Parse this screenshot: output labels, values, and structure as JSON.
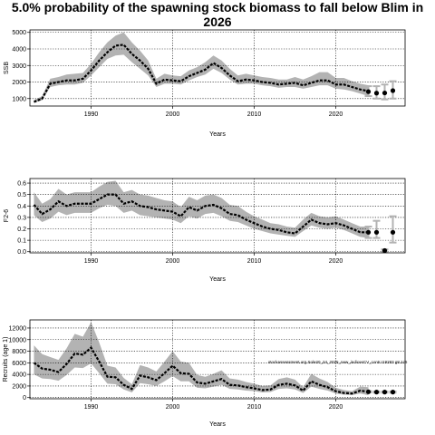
{
  "page": {
    "title": "5.0% probability of the spawning stock biomass to fall below Blim in 2026",
    "note": "stockassessment.org Sole20_24_2025_new_indicesCV_contr.r19283 g8.1c6"
  },
  "colors": {
    "band": "#b3b3b3",
    "line": "#000000",
    "grid": "#000000",
    "errorbar": "#b3b3b3"
  },
  "chart_data": [
    {
      "type": "line",
      "name": "ssb",
      "title": "",
      "xlabel": "Years",
      "ylabel": "SSB",
      "xlim": [
        1982.5,
        2028.5
      ],
      "ylim": [
        550,
        5150
      ],
      "xticks": [
        1990,
        2000,
        2010,
        2020
      ],
      "yticks": [
        1000,
        2000,
        3000,
        4000,
        5000
      ],
      "grid": true,
      "x": [
        1983,
        1984,
        1985,
        1986,
        1987,
        1988,
        1989,
        1990,
        1991,
        1992,
        1993,
        1994,
        1995,
        1996,
        1997,
        1998,
        1999,
        2000,
        2001,
        2002,
        2003,
        2004,
        2005,
        2006,
        2007,
        2008,
        2009,
        2010,
        2011,
        2012,
        2013,
        2014,
        2015,
        2016,
        2017,
        2018,
        2019,
        2020,
        2021,
        2022,
        2023,
        2024
      ],
      "values": [
        800,
        1000,
        1900,
        2000,
        2100,
        2100,
        2200,
        2700,
        3300,
        3800,
        4200,
        4250,
        3700,
        3300,
        2800,
        1900,
        2150,
        2100,
        2050,
        2350,
        2550,
        2750,
        3150,
        2850,
        2400,
        2050,
        2150,
        2100,
        2000,
        1950,
        1850,
        1900,
        1950,
        1800,
        1950,
        2100,
        2100,
        1850,
        1850,
        1700,
        1550,
        1450
      ],
      "lower": [
        750,
        900,
        1700,
        1800,
        1850,
        1850,
        1950,
        2400,
        2900,
        3400,
        3600,
        3650,
        3200,
        2800,
        2400,
        1700,
        1900,
        1900,
        1850,
        2100,
        2300,
        2450,
        2800,
        2550,
        2150,
        1850,
        1900,
        1900,
        1800,
        1750,
        1650,
        1700,
        1700,
        1600,
        1700,
        1800,
        1800,
        1600,
        1550,
        1450,
        1300,
        1150
      ],
      "upper": [
        900,
        1150,
        2200,
        2300,
        2450,
        2500,
        2550,
        3100,
        3800,
        4400,
        4800,
        5000,
        4400,
        3900,
        3300,
        2200,
        2500,
        2400,
        2350,
        2700,
        2900,
        3200,
        3600,
        3300,
        2800,
        2400,
        2500,
        2400,
        2300,
        2250,
        2150,
        2150,
        2300,
        2150,
        2350,
        2600,
        2600,
        2250,
        2250,
        2050,
        1900,
        1800
      ],
      "forecast_x": [
        2024,
        2025,
        2026,
        2027
      ],
      "forecast_values": [
        1420,
        1330,
        1340,
        1480
      ],
      "forecast_lower": [
        1150,
        1000,
        950,
        1000
      ],
      "forecast_upper": [
        1750,
        1750,
        1850,
        2050
      ]
    },
    {
      "type": "line",
      "name": "fbar",
      "title": "",
      "xlabel": "Years",
      "ylabel": "F2-6",
      "xlim": [
        1982.5,
        2028.5
      ],
      "ylim": [
        -0.01,
        0.64
      ],
      "xticks": [
        1990,
        2000,
        2010,
        2020
      ],
      "yticks": [
        0.0,
        0.1,
        0.2,
        0.3,
        0.4,
        0.5,
        0.6
      ],
      "ytick_labels": [
        "0.0",
        "0.1",
        "0.2",
        "0.3",
        "0.4",
        "0.5",
        "0.6"
      ],
      "grid": true,
      "x": [
        1983,
        1984,
        1985,
        1986,
        1987,
        1988,
        1989,
        1990,
        1991,
        1992,
        1993,
        1994,
        1995,
        1996,
        1997,
        1998,
        1999,
        2000,
        2001,
        2002,
        2003,
        2004,
        2005,
        2006,
        2007,
        2008,
        2009,
        2010,
        2011,
        2012,
        2013,
        2014,
        2015,
        2016,
        2017,
        2018,
        2019,
        2020,
        2021,
        2022,
        2023,
        2024
      ],
      "values": [
        0.41,
        0.33,
        0.37,
        0.44,
        0.4,
        0.42,
        0.42,
        0.42,
        0.46,
        0.5,
        0.5,
        0.42,
        0.44,
        0.4,
        0.39,
        0.37,
        0.36,
        0.35,
        0.31,
        0.39,
        0.36,
        0.4,
        0.41,
        0.38,
        0.33,
        0.32,
        0.28,
        0.25,
        0.22,
        0.2,
        0.19,
        0.17,
        0.16,
        0.22,
        0.28,
        0.25,
        0.24,
        0.25,
        0.23,
        0.2,
        0.17,
        0.17
      ],
      "lower": [
        0.32,
        0.26,
        0.29,
        0.35,
        0.32,
        0.34,
        0.34,
        0.34,
        0.38,
        0.41,
        0.4,
        0.34,
        0.36,
        0.32,
        0.31,
        0.3,
        0.29,
        0.28,
        0.25,
        0.31,
        0.29,
        0.33,
        0.34,
        0.31,
        0.27,
        0.26,
        0.23,
        0.2,
        0.18,
        0.16,
        0.15,
        0.14,
        0.13,
        0.18,
        0.23,
        0.21,
        0.2,
        0.21,
        0.19,
        0.16,
        0.13,
        0.12
      ],
      "upper": [
        0.52,
        0.42,
        0.46,
        0.55,
        0.5,
        0.52,
        0.52,
        0.52,
        0.57,
        0.61,
        0.62,
        0.52,
        0.54,
        0.5,
        0.49,
        0.47,
        0.45,
        0.44,
        0.39,
        0.48,
        0.45,
        0.49,
        0.5,
        0.47,
        0.41,
        0.4,
        0.35,
        0.31,
        0.28,
        0.25,
        0.24,
        0.22,
        0.21,
        0.28,
        0.34,
        0.31,
        0.3,
        0.31,
        0.28,
        0.25,
        0.22,
        0.22
      ],
      "forecast_x": [
        2024,
        2025,
        2026,
        2027
      ],
      "forecast_values": [
        0.17,
        0.17,
        0.01,
        0.17
      ],
      "forecast_lower": [
        0.12,
        0.12,
        0.0,
        0.08
      ],
      "forecast_upper": [
        0.22,
        0.27,
        0.02,
        0.31
      ]
    },
    {
      "type": "line",
      "name": "recruits",
      "title": "",
      "xlabel": "Years",
      "ylabel": "Recruits (age 1)",
      "xlim": [
        1982.5,
        2028.5
      ],
      "ylim": [
        -200,
        13400
      ],
      "xticks": [
        1990,
        2000,
        2010,
        2020
      ],
      "yticks": [
        0,
        2000,
        4000,
        6000,
        8000,
        10000,
        12000
      ],
      "grid": true,
      "x": [
        1983,
        1984,
        1985,
        1986,
        1987,
        1988,
        1989,
        1990,
        1991,
        1992,
        1993,
        1994,
        1995,
        1996,
        1997,
        1998,
        1999,
        2000,
        2001,
        2002,
        2003,
        2004,
        2005,
        2006,
        2007,
        2008,
        2009,
        2010,
        2011,
        2012,
        2013,
        2014,
        2015,
        2016,
        2017,
        2018,
        2019,
        2020,
        2021,
        2022,
        2023,
        2024
      ],
      "values": [
        6000,
        5000,
        4800,
        4400,
        5800,
        7600,
        7400,
        8600,
        6200,
        3600,
        3500,
        2200,
        1500,
        3800,
        3500,
        3000,
        4200,
        5500,
        4200,
        4100,
        2600,
        2400,
        2800,
        3200,
        2200,
        2100,
        1800,
        1600,
        1300,
        1400,
        2200,
        2400,
        2100,
        1200,
        2800,
        2200,
        1800,
        1100,
        800,
        700,
        1200,
        1000
      ],
      "lower": [
        4000,
        3300,
        3200,
        2900,
        3900,
        5200,
        5100,
        5900,
        4200,
        2400,
        2300,
        1400,
        900,
        2500,
        2300,
        2000,
        2800,
        3700,
        2800,
        2800,
        1700,
        1600,
        1900,
        2200,
        1500,
        1400,
        1200,
        1100,
        900,
        950,
        1500,
        1600,
        1400,
        800,
        1900,
        1500,
        1200,
        700,
        500,
        450,
        700,
        400
      ],
      "upper": [
        9000,
        7500,
        7000,
        6500,
        8500,
        11000,
        10500,
        13000,
        9500,
        5500,
        5200,
        3400,
        2300,
        5600,
        5200,
        4500,
        6200,
        8000,
        6200,
        6000,
        3900,
        3600,
        4100,
        4700,
        3300,
        3100,
        2700,
        2400,
        2000,
        2100,
        3200,
        3500,
        3100,
        1800,
        4100,
        3300,
        2700,
        1700,
        1300,
        1100,
        1900,
        1800
      ],
      "forecast_x": [
        2024,
        2025,
        2026,
        2027
      ],
      "forecast_values": [
        1000,
        950,
        950,
        950
      ],
      "forecast_lower": [
        900,
        850,
        850,
        850
      ],
      "forecast_upper": [
        1100,
        1050,
        1050,
        1050
      ]
    }
  ]
}
